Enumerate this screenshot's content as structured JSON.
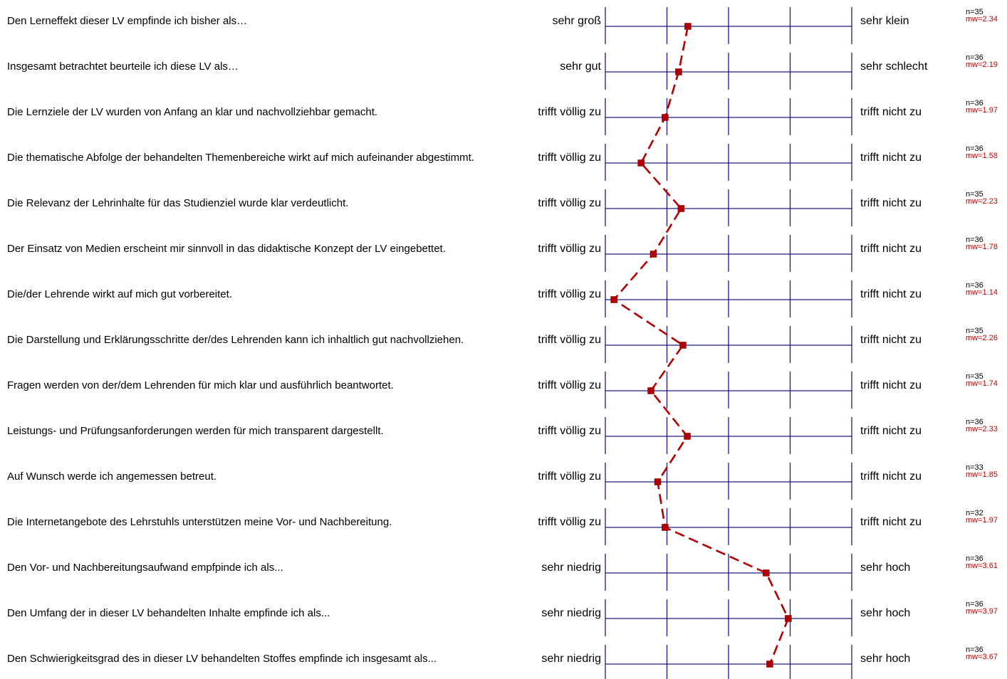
{
  "chart_data": {
    "type": "line",
    "scale": [
      1,
      5
    ],
    "series": [
      {
        "values": [
          2.34,
          2.19,
          1.97,
          1.58,
          2.23,
          1.78,
          1.14,
          2.26,
          1.74,
          2.33,
          1.85,
          1.97,
          3.61,
          3.97,
          3.67
        ]
      }
    ],
    "items": [
      {
        "question": "Den Lerneffekt dieser LV empfinde ich bisher als…",
        "left": "sehr groß",
        "right": "sehr klein",
        "n": "n=35",
        "mw": "mw=2.34",
        "value": 2.34
      },
      {
        "question": "Insgesamt betrachtet beurteile ich diese LV als…",
        "left": "sehr gut",
        "right": "sehr schlecht",
        "n": "n=36",
        "mw": "mw=2.19",
        "value": 2.19
      },
      {
        "question": "Die Lernziele der LV wurden von Anfang an klar und nachvollziehbar gemacht.",
        "left": "trifft völlig zu",
        "right": "trifft nicht zu",
        "n": "n=36",
        "mw": "mw=1.97",
        "value": 1.97
      },
      {
        "question": "Die thematische Abfolge der behandelten Themenbereiche wirkt auf mich aufeinander abgestimmt.",
        "left": "trifft völlig zu",
        "right": "trifft nicht zu",
        "n": "n=36",
        "mw": "mw=1.58",
        "value": 1.58
      },
      {
        "question": "Die Relevanz der Lehrinhalte für das Studienziel wurde klar verdeutlicht.",
        "left": "trifft völlig zu",
        "right": "trifft nicht zu",
        "n": "n=35",
        "mw": "mw=2.23",
        "value": 2.23
      },
      {
        "question": "Der Einsatz von Medien erscheint mir sinnvoll in das didaktische Konzept der LV eingebettet.",
        "left": "trifft völlig zu",
        "right": "trifft nicht zu",
        "n": "n=36",
        "mw": "mw=1.78",
        "value": 1.78
      },
      {
        "question": "Die/der Lehrende wirkt auf mich gut vorbereitet.",
        "left": "trifft völlig zu",
        "right": "trifft nicht zu",
        "n": "n=36",
        "mw": "mw=1.14",
        "value": 1.14
      },
      {
        "question": "Die Darstellung und Erklärungsschritte der/des Lehrenden kann ich inhaltlich gut nachvollziehen.",
        "left": "trifft völlig zu",
        "right": "trifft nicht zu",
        "n": "n=35",
        "mw": "mw=2.26",
        "value": 2.26
      },
      {
        "question": "Fragen werden von der/dem Lehrenden für mich klar und ausführlich beantwortet.",
        "left": "trifft völlig zu",
        "right": "trifft nicht zu",
        "n": "n=35",
        "mw": "mw=1.74",
        "value": 1.74
      },
      {
        "question": "Leistungs- und Prüfungsanforderungen werden für mich transparent dargestellt.",
        "left": "trifft völlig zu",
        "right": "trifft nicht zu",
        "n": "n=36",
        "mw": "mw=2.33",
        "value": 2.33
      },
      {
        "question": "Auf Wunsch werde ich angemessen betreut.",
        "left": "trifft völlig zu",
        "right": "trifft nicht zu",
        "n": "n=33",
        "mw": "mw=1.85",
        "value": 1.85
      },
      {
        "question": "Die Internetangebote des Lehrstuhls unterstützen meine Vor- und Nachbereitung.",
        "left": "trifft völlig zu",
        "right": "trifft nicht zu",
        "n": "n=32",
        "mw": "mw=1.97",
        "value": 1.97
      },
      {
        "question": "Den Vor- und Nachbereitungsaufwand  empfpinde ich als...",
        "left": "sehr niedrig",
        "right": "sehr hoch",
        "n": "n=36",
        "mw": "mw=3.61",
        "value": 3.61
      },
      {
        "question": "Den Umfang der in dieser LV behandelten Inhalte empfinde ich als...",
        "left": "sehr niedrig",
        "right": "sehr hoch",
        "n": "n=36",
        "mw": "mw=3.97",
        "value": 3.97
      },
      {
        "question": "Den Schwierigkeitsgrad des in dieser LV behandelten Stoffes empfinde ich insgesamt als...",
        "left": "sehr niedrig",
        "right": "sehr hoch",
        "n": "n=36",
        "mw": "mw=3.67",
        "value": 3.67
      }
    ]
  },
  "colors": {
    "grid": "#1a1a8c",
    "profile": "#b00000",
    "mean_text": "#c00000"
  }
}
